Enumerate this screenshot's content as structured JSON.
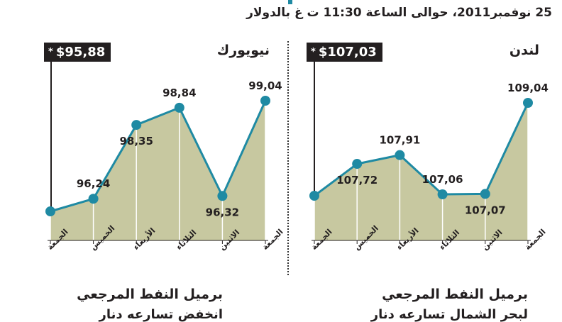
{
  "header": {
    "text": "25 نوفمبر2011، حوالى الساعة 11:30 ت غ بالدولار"
  },
  "panels": [
    {
      "id": "newyork",
      "city": "نيويورك",
      "price": "$95,88",
      "star": "*",
      "caption": "برميل النفط المرجعي",
      "caption2": "انخفض تسارعه دنار"
    },
    {
      "id": "london",
      "city": "لندن",
      "price": "$107,03",
      "star": "*",
      "caption": "برميل النفط المرجعي",
      "caption2": "لبحر الشمال تسارعه دنار"
    }
  ],
  "colors": {
    "fill": "#c7c8a0",
    "line": "#1f8aa3",
    "marker": "#1f8aa3",
    "text": "#231f20"
  },
  "chart_data": [
    {
      "type": "area",
      "title": "نيويورك",
      "categories": [
        "الجمعة",
        "الخميس",
        "الأربعاء",
        "الثلاثاء",
        "الاثنين",
        "الجمعة"
      ],
      "values": [
        95.88,
        96.24,
        98.35,
        98.84,
        96.32,
        99.04
      ],
      "labels": [
        "",
        "96,24",
        "98,35",
        "98,84",
        "96,32",
        "99,04"
      ],
      "ylim": [
        95.5,
        99.5
      ]
    },
    {
      "type": "area",
      "title": "لندن",
      "categories": [
        "الجمعة",
        "الخميس",
        "الأربعاء",
        "الثلاثاء",
        "الاثنين",
        "الجمعة"
      ],
      "values": [
        107.03,
        107.72,
        107.91,
        107.06,
        107.07,
        109.04
      ],
      "labels": [
        "",
        "107,72",
        "107,91",
        "107,06",
        "107,07",
        "109,04"
      ],
      "ylim": [
        106.8,
        109.3
      ]
    }
  ]
}
